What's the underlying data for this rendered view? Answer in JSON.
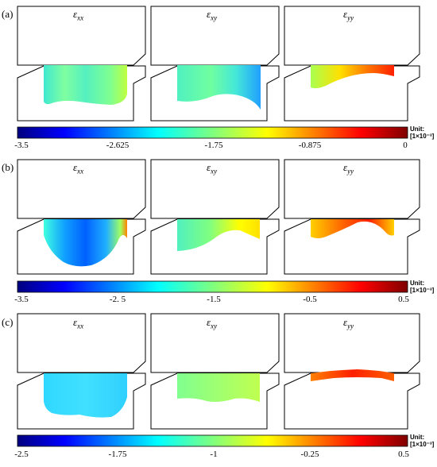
{
  "rows": [
    {
      "letter": "(a)",
      "titles": [
        "εxx",
        "εxy",
        "εyy"
      ],
      "ticks": [
        "-3.5",
        "-2.625",
        "-1.75",
        "-0.875",
        "0"
      ],
      "unit_line1": "Unit:",
      "unit_line2": "[1×10⁻³]"
    },
    {
      "letter": "(b)",
      "titles": [
        "εxx",
        "εxy",
        "εyy"
      ],
      "ticks": [
        "-3.5",
        "-2. 5",
        "-1.5",
        "-0.5",
        "0.5"
      ],
      "unit_line1": "Unit:",
      "unit_line2": "[1×10⁻³]"
    },
    {
      "letter": "(c)",
      "titles": [
        "εxx",
        "εxy",
        "εyy"
      ],
      "ticks": [
        "-2.5",
        "-1.75",
        "-1",
        "-0.25",
        "0.5"
      ],
      "unit_line1": "Unit:",
      "unit_line2": "[1×10⁻³]"
    }
  ],
  "colormap": [
    "#00007f",
    "#0000ff",
    "#007fff",
    "#00ffff",
    "#7fff7f",
    "#ffff00",
    "#ff7f00",
    "#ff0000",
    "#7f0000"
  ]
}
